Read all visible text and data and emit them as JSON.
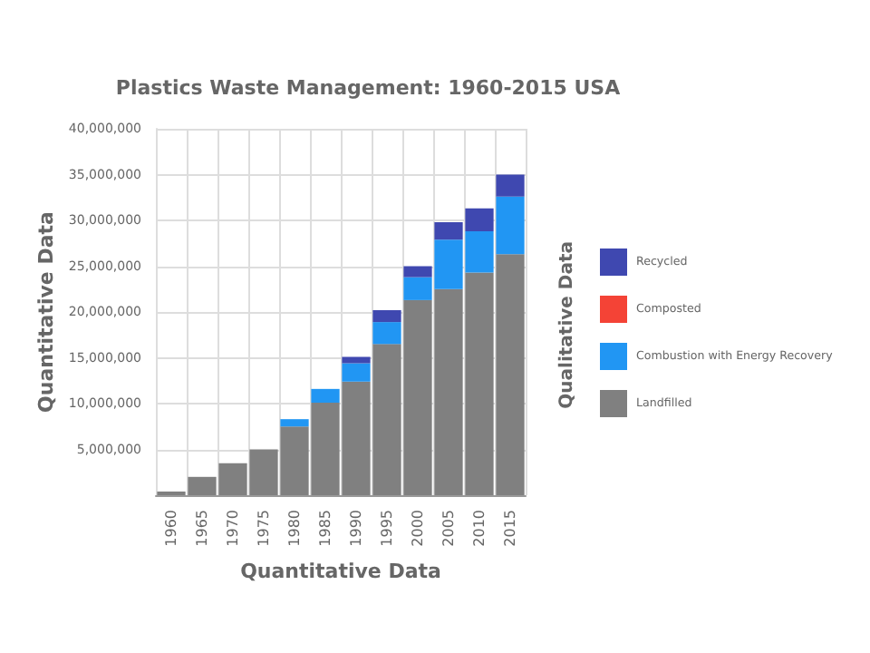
{
  "chart_data": {
    "type": "bar",
    "title": "Plastics Waste Management: 1960-2015 USA",
    "xlabel": "Quantitative Data",
    "ylabel": "Quantitative Data",
    "legend_title": "Qualitative Data",
    "categories": [
      "1960",
      "1965",
      "1970",
      "1975",
      "1980",
      "1985",
      "1990",
      "1995",
      "2000",
      "2005",
      "2010",
      "2015"
    ],
    "stacked": true,
    "series": [
      {
        "name": "Landfilled",
        "color": "#808080",
        "values": [
          400000,
          2000000,
          3500000,
          5000000,
          7500000,
          10100000,
          12400000,
          16500000,
          21300000,
          22500000,
          24300000,
          26300000
        ]
      },
      {
        "name": "Combustion with Energy Recovery",
        "color": "#2196f3",
        "values": [
          0,
          0,
          0,
          0,
          800000,
          1500000,
          2000000,
          2400000,
          2500000,
          5400000,
          4500000,
          6300000
        ]
      },
      {
        "name": "Composted",
        "color": "#f44336",
        "values": [
          0,
          0,
          0,
          0,
          0,
          0,
          0,
          0,
          0,
          0,
          0,
          0
        ]
      },
      {
        "name": "Recycled",
        "color": "#3f48b0",
        "values": [
          0,
          0,
          0,
          0,
          0,
          0,
          700000,
          1300000,
          1200000,
          1900000,
          2500000,
          2400000
        ]
      }
    ],
    "ylim": [
      0,
      40000000
    ],
    "yticks": [
      {
        "value": 5000000,
        "label": "5,000,000"
      },
      {
        "value": 10000000,
        "label": "10,000,000"
      },
      {
        "value": 15000000,
        "label": "15,000,000"
      },
      {
        "value": 20000000,
        "label": "20,000,000"
      },
      {
        "value": 25000000,
        "label": "25,000,000"
      },
      {
        "value": 30000000,
        "label": "30,000,000"
      },
      {
        "value": 35000000,
        "label": "35,000,000"
      },
      {
        "value": 40000000,
        "label": "40,000,000"
      }
    ],
    "grid": true,
    "legend": "right"
  }
}
